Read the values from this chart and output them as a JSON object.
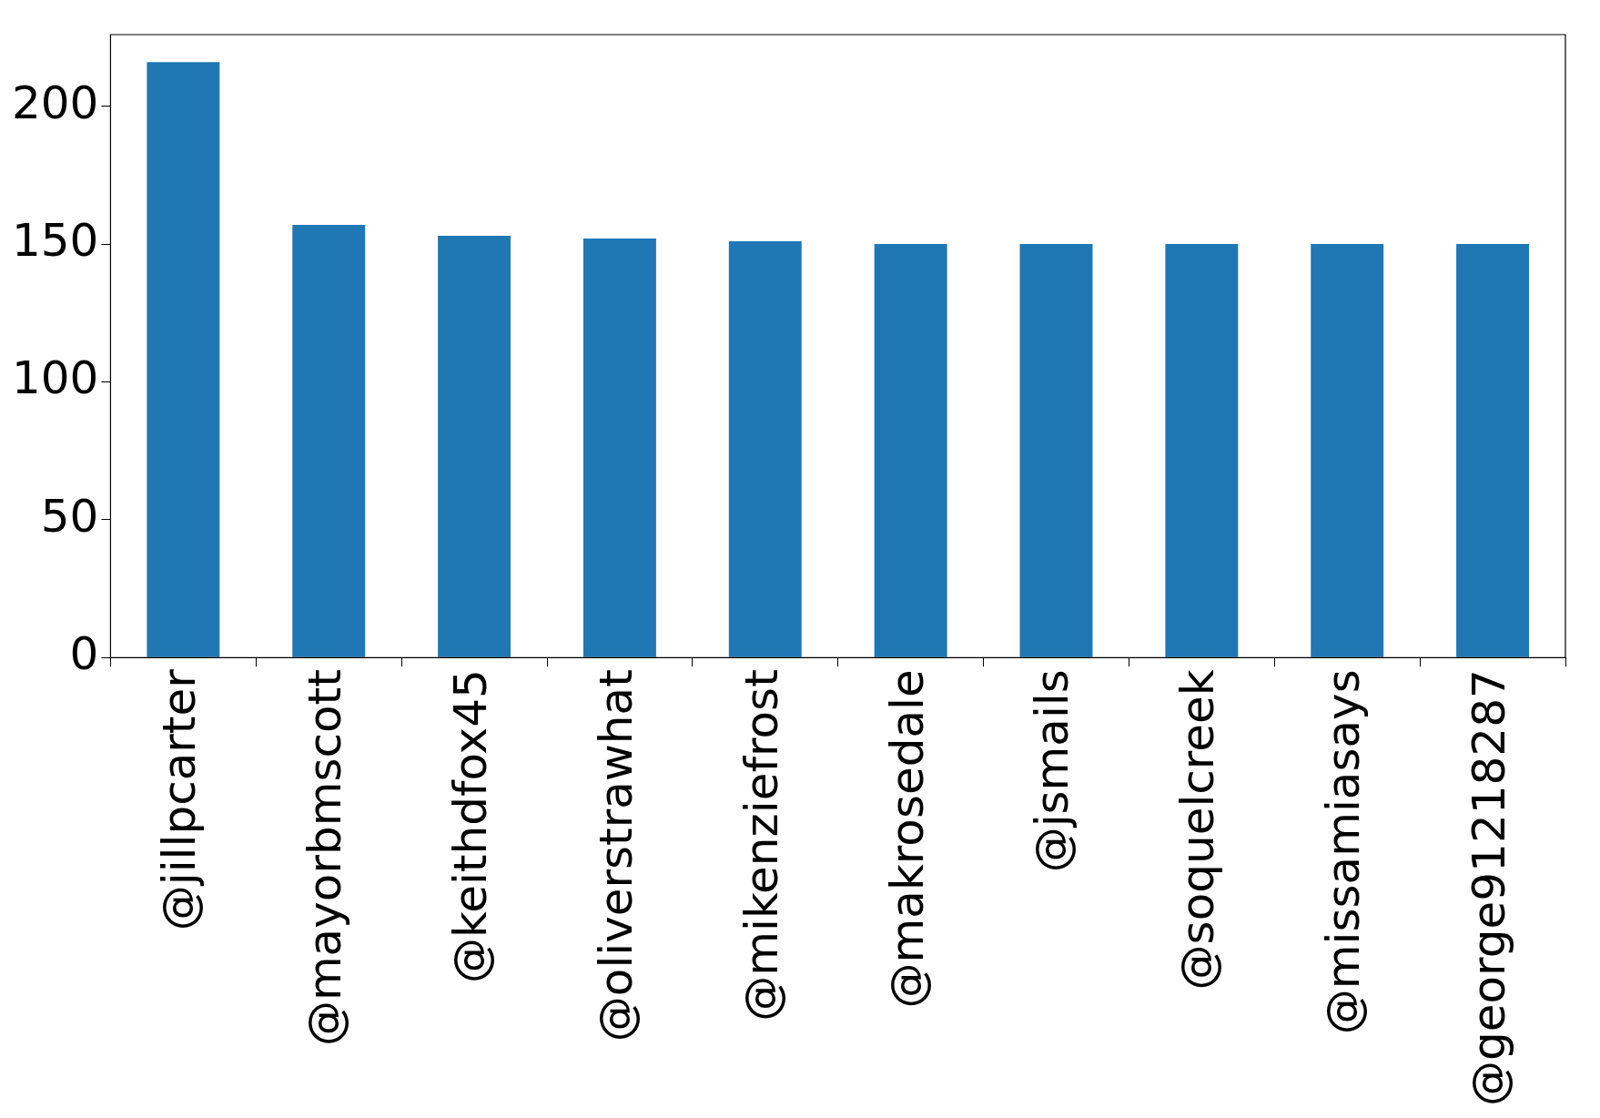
{
  "chart_data": {
    "type": "bar",
    "categories": [
      "@jillpcarter",
      "@mayorbmscott",
      "@keithdfox45",
      "@oliverstrawhat",
      "@mikenziefrost",
      "@makrosedale",
      "@jsmails",
      "@soquelcreek",
      "@missamiasays",
      "@george91218287"
    ],
    "values": [
      216,
      157,
      153,
      152,
      151,
      150,
      150,
      150,
      150,
      150
    ],
    "color": "#1f77b4",
    "ylim": [
      0,
      226
    ],
    "yticks": [
      0,
      50,
      100,
      150,
      200
    ],
    "grid": false,
    "legend": false
  }
}
